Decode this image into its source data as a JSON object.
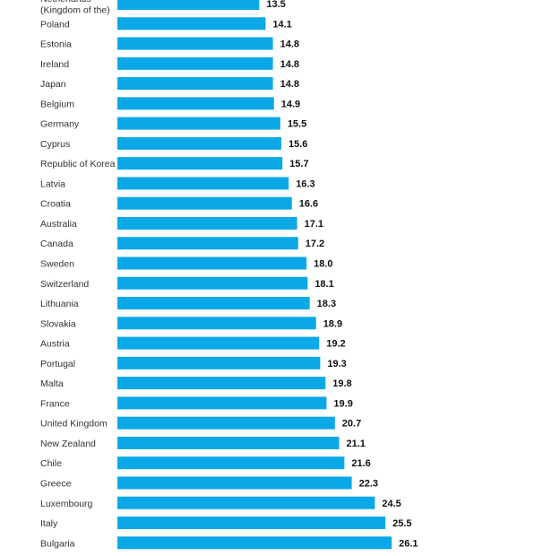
{
  "chart_data": {
    "type": "bar",
    "orientation": "horizontal",
    "bar_color": "#0AA8E6",
    "grid": false,
    "categories": [
      "Netherlands (Kingdom of the)",
      "Poland",
      "Estonia",
      "Ireland",
      "Japan",
      "Belgium",
      "Germany",
      "Cyprus",
      "Republic of Korea",
      "Latvia",
      "Croatia",
      "Australia",
      "Canada",
      "Sweden",
      "Switzerland",
      "Lithuania",
      "Slovakia",
      "Austria",
      "Portugal",
      "Malta",
      "France",
      "United Kingdom",
      "New Zealand",
      "Chile",
      "Greece",
      "Luxembourg",
      "Italy",
      "Bulgaria"
    ],
    "label_lines": [
      [
        "Netherlands",
        "(Kingdom of the)"
      ],
      [
        "Poland"
      ],
      [
        "Estonia"
      ],
      [
        "Ireland"
      ],
      [
        "Japan"
      ],
      [
        "Belgium"
      ],
      [
        "Germany"
      ],
      [
        "Cyprus"
      ],
      [
        "Republic of Korea"
      ],
      [
        "Latvia"
      ],
      [
        "Croatia"
      ],
      [
        "Australia"
      ],
      [
        "Canada"
      ],
      [
        "Sweden"
      ],
      [
        "Switzerland"
      ],
      [
        "Lithuania"
      ],
      [
        "Slovakia"
      ],
      [
        "Austria"
      ],
      [
        "Portugal"
      ],
      [
        "Malta"
      ],
      [
        "France"
      ],
      [
        "United Kingdom"
      ],
      [
        "New Zealand"
      ],
      [
        "Chile"
      ],
      [
        "Greece"
      ],
      [
        "Luxembourg"
      ],
      [
        "Italy"
      ],
      [
        "Bulgaria"
      ]
    ],
    "values": [
      13.5,
      14.1,
      14.8,
      14.8,
      14.8,
      14.9,
      15.5,
      15.6,
      15.7,
      16.3,
      16.6,
      17.1,
      17.2,
      18.0,
      18.1,
      18.3,
      18.9,
      19.2,
      19.3,
      19.8,
      19.9,
      20.7,
      21.1,
      21.6,
      22.3,
      24.5,
      25.5,
      26.1
    ],
    "value_labels": [
      "13.5",
      "14.1",
      "14.8",
      "14.8",
      "14.8",
      "14.9",
      "15.5",
      "15.6",
      "15.7",
      "16.3",
      "16.6",
      "17.1",
      "17.2",
      "18.0",
      "18.1",
      "18.3",
      "18.9",
      "19.2",
      "19.3",
      "19.8",
      "19.9",
      "20.7",
      "21.1",
      "21.6",
      "22.3",
      "24.5",
      "25.5",
      "26.1"
    ]
  }
}
